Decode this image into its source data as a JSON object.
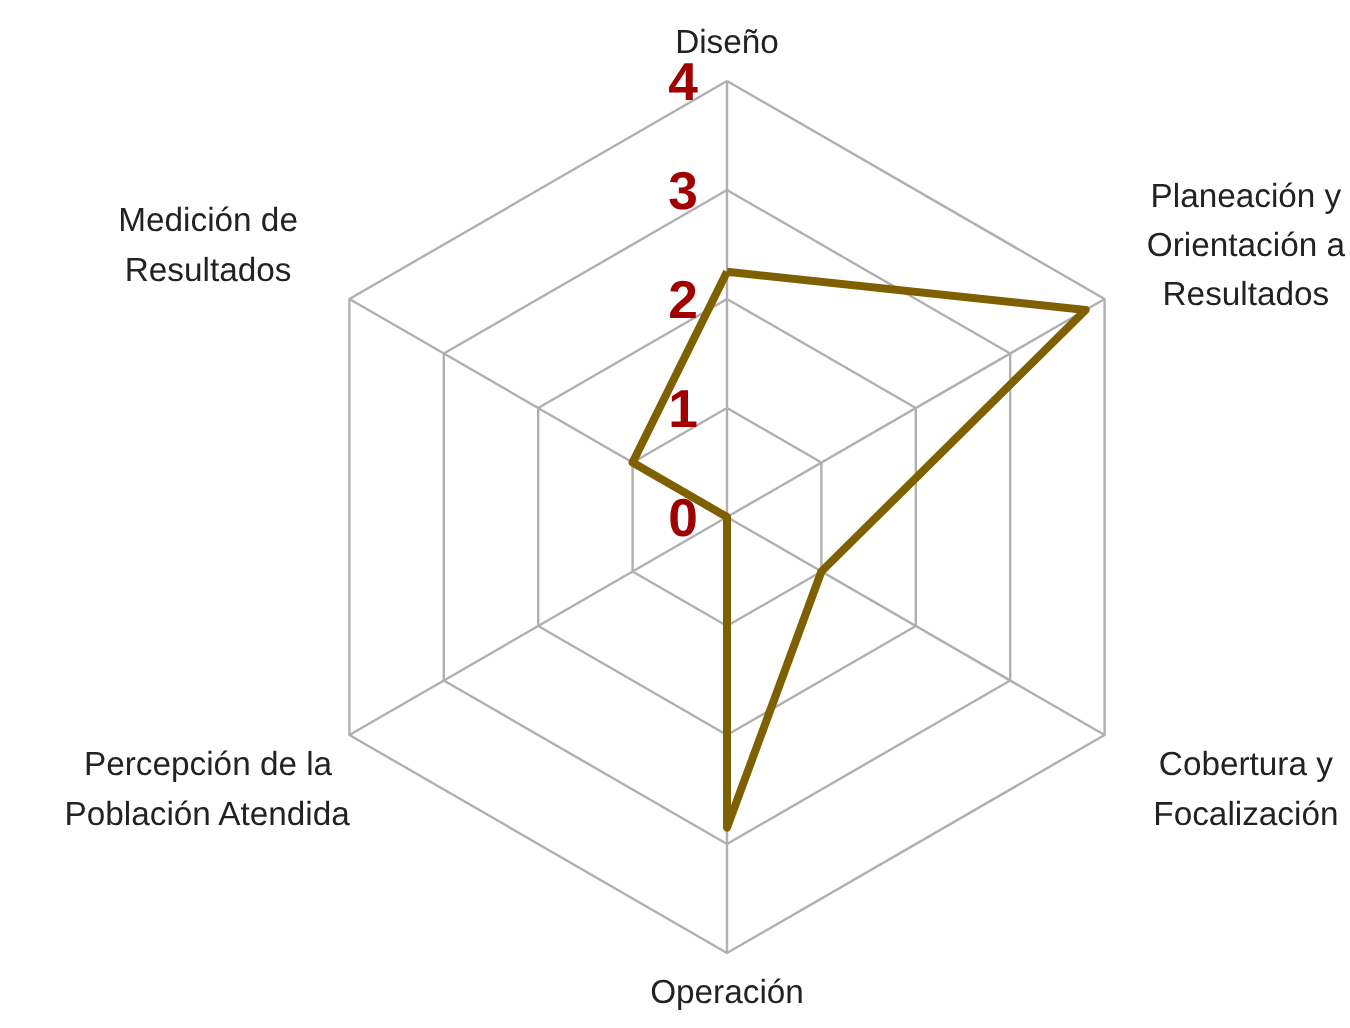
{
  "chart_data": {
    "type": "radar",
    "categories": [
      "Diseño",
      "Planeación y\nOrientación a\nResultados",
      "Cobertura y\nFocalización",
      "Operación",
      "Percepción de la\nPoblación Atendida",
      "Medición de\nResultados"
    ],
    "series": [
      {
        "color": "#7f6000",
        "values": [
          2.25,
          3.8,
          1.0,
          2.85,
          0,
          1.0
        ]
      }
    ],
    "ylim": [
      0,
      4
    ],
    "yticks": [
      0,
      1,
      2,
      3,
      4
    ],
    "grid": true
  }
}
